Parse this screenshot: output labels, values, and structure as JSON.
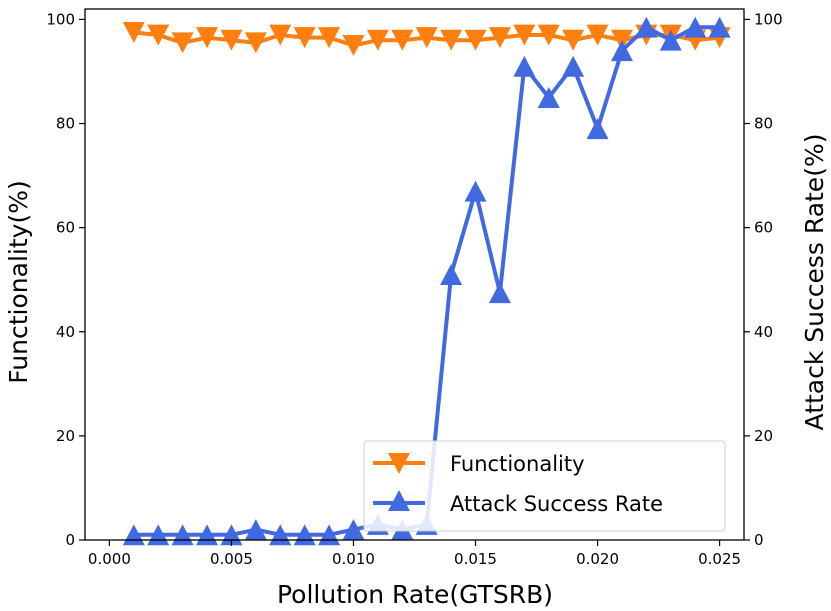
{
  "chart_data": {
    "type": "line",
    "xlabel": "Pollution Rate(GTSRB)",
    "ylabel_left": "Functionality(%)",
    "ylabel_right": "Attack Success Rate(%)",
    "xlim": [
      -0.001,
      0.026
    ],
    "ylim": [
      0,
      102
    ],
    "x_ticks": [
      0.0,
      0.005,
      0.01,
      0.015,
      0.02,
      0.025
    ],
    "x_tick_labels": [
      "0.000",
      "0.005",
      "0.010",
      "0.015",
      "0.020",
      "0.025"
    ],
    "y_ticks": [
      0,
      20,
      40,
      60,
      80,
      100
    ],
    "y_tick_labels": [
      "0",
      "20",
      "40",
      "60",
      "80",
      "100"
    ],
    "legend_position": "lower-right",
    "x": [
      0.001,
      0.002,
      0.003,
      0.004,
      0.005,
      0.006,
      0.007,
      0.008,
      0.009,
      0.01,
      0.011,
      0.012,
      0.013,
      0.014,
      0.015,
      0.016,
      0.017,
      0.018,
      0.019,
      0.02,
      0.021,
      0.022,
      0.023,
      0.024,
      0.025
    ],
    "series": [
      {
        "name": "Functionality",
        "axis": "left",
        "color": "#ff7f0e",
        "marker": "triangle-down",
        "values": [
          97.5,
          97.0,
          95.5,
          96.5,
          96.0,
          95.5,
          97.0,
          96.5,
          96.5,
          95.0,
          96.0,
          96.0,
          96.5,
          96.0,
          96.0,
          96.5,
          97.0,
          97.0,
          96.0,
          97.0,
          96.0,
          97.0,
          97.0,
          96.0,
          96.5
        ]
      },
      {
        "name": "Attack Success Rate",
        "axis": "right",
        "color": "#4169e1",
        "marker": "triangle-up",
        "values": [
          1.0,
          1.0,
          1.0,
          1.0,
          1.0,
          2.0,
          1.0,
          1.0,
          1.0,
          2.0,
          3.0,
          2.0,
          3.0,
          51.0,
          67.0,
          47.5,
          91.0,
          85.0,
          91.0,
          79.0,
          94.0,
          98.5,
          96.0,
          98.5,
          98.5
        ]
      }
    ]
  }
}
